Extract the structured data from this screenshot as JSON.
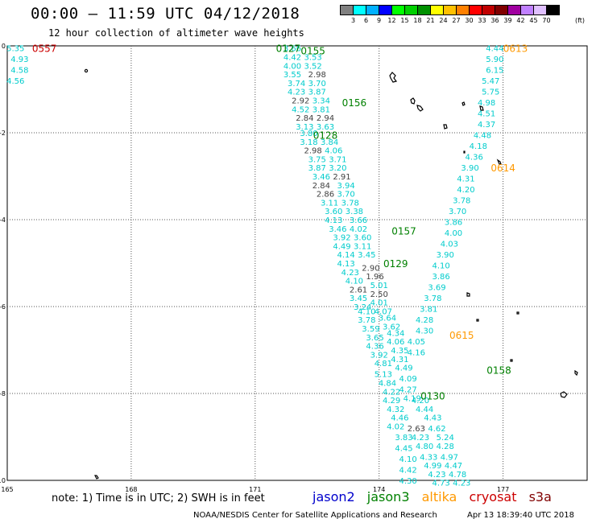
{
  "header": {
    "title": "00:00 – 11:59 UTC 04/12/2018",
    "subtitle": "12 hour collection of altimeter wave heights"
  },
  "colorbar": {
    "colors": [
      "#808080",
      "#00ffff",
      "#00b0ff",
      "#0000ff",
      "#00ff00",
      "#00d000",
      "#009000",
      "#ffff00",
      "#ffc000",
      "#ff8000",
      "#ff0000",
      "#c00000",
      "#800000",
      "#a000a0",
      "#c080ff",
      "#e0c0ff",
      "#000000"
    ],
    "ticks": [
      "3",
      "6",
      "9",
      "12",
      "15",
      "18",
      "21",
      "24",
      "27",
      "30",
      "33",
      "36",
      "39",
      "42",
      "45",
      "70"
    ],
    "unit": "(ft)"
  },
  "axes": {
    "y_ticks": [
      "0",
      "-2",
      "-4",
      "-6",
      "-8",
      "-10"
    ],
    "x_ticks": [
      "165",
      "168",
      "171",
      "174",
      "177"
    ]
  },
  "colors": {
    "jason2": "#0000cc",
    "jason3": "#008000",
    "altika": "#ff9900",
    "cryosat": "#cc0000",
    "s3a": "#800000",
    "cyan": "#00cccc",
    "gray": "#404040"
  },
  "time_labels": [
    {
      "text": "0557",
      "lon": 165.9,
      "lat": -0.05,
      "color": "#cc0000"
    },
    {
      "text": "0127",
      "lon": 171.8,
      "lat": -0.05,
      "color": "#008000"
    },
    {
      "text": "0155",
      "lon": 172.4,
      "lat": -0.1,
      "color": "#008000"
    },
    {
      "text": "0613",
      "lon": 177.3,
      "lat": -0.05,
      "color": "#ff9900"
    },
    {
      "text": "0156",
      "lon": 173.4,
      "lat": -1.3,
      "color": "#008000"
    },
    {
      "text": "0128",
      "lon": 172.7,
      "lat": -2.05,
      "color": "#008000"
    },
    {
      "text": "0614",
      "lon": 177.0,
      "lat": -2.8,
      "color": "#ff9900"
    },
    {
      "text": "0157",
      "lon": 174.6,
      "lat": -4.25,
      "color": "#008000"
    },
    {
      "text": "0129",
      "lon": 174.4,
      "lat": -5.0,
      "color": "#008000"
    },
    {
      "text": "0615",
      "lon": 176.0,
      "lat": -6.65,
      "color": "#ff9900"
    },
    {
      "text": "0158",
      "lon": 176.9,
      "lat": -7.45,
      "color": "#008000"
    },
    {
      "text": "0130",
      "lon": 175.3,
      "lat": -8.05,
      "color": "#008000"
    }
  ],
  "wave_values": [
    {
      "text": "5.35",
      "lon": 165.2,
      "lat": -0.05,
      "color": "#00cccc"
    },
    {
      "text": "4.93",
      "lon": 165.3,
      "lat": -0.3,
      "color": "#00cccc"
    },
    {
      "text": "4.58",
      "lon": 165.3,
      "lat": -0.55,
      "color": "#00cccc"
    },
    {
      "text": "4.56",
      "lon": 165.2,
      "lat": -0.8,
      "color": "#00cccc"
    },
    {
      "text": "3.66",
      "lon": 171.9,
      "lat": -0.05,
      "color": "#00cccc"
    },
    {
      "text": "4.42",
      "lon": 171.9,
      "lat": -0.25,
      "color": "#00cccc"
    },
    {
      "text": "3.53",
      "lon": 172.4,
      "lat": -0.25,
      "color": "#00cccc"
    },
    {
      "text": "4.00",
      "lon": 171.9,
      "lat": -0.45,
      "color": "#00cccc"
    },
    {
      "text": "3.52",
      "lon": 172.4,
      "lat": -0.45,
      "color": "#00cccc"
    },
    {
      "text": "3.55",
      "lon": 171.9,
      "lat": -0.65,
      "color": "#00cccc"
    },
    {
      "text": "2.98",
      "lon": 172.5,
      "lat": -0.65,
      "color": "#404040"
    },
    {
      "text": "3.74",
      "lon": 172.0,
      "lat": -0.85,
      "color": "#00cccc"
    },
    {
      "text": "3.70",
      "lon": 172.5,
      "lat": -0.85,
      "color": "#00cccc"
    },
    {
      "text": "4.23",
      "lon": 172.0,
      "lat": -1.05,
      "color": "#00cccc"
    },
    {
      "text": "3.87",
      "lon": 172.5,
      "lat": -1.05,
      "color": "#00cccc"
    },
    {
      "text": "2.92",
      "lon": 172.1,
      "lat": -1.25,
      "color": "#404040"
    },
    {
      "text": "3.34",
      "lon": 172.6,
      "lat": -1.25,
      "color": "#00cccc"
    },
    {
      "text": "4.52",
      "lon": 172.1,
      "lat": -1.45,
      "color": "#00cccc"
    },
    {
      "text": "3.81",
      "lon": 172.6,
      "lat": -1.45,
      "color": "#00cccc"
    },
    {
      "text": "2.84",
      "lon": 172.2,
      "lat": -1.65,
      "color": "#404040"
    },
    {
      "text": "2.94",
      "lon": 172.7,
      "lat": -1.65,
      "color": "#404040"
    },
    {
      "text": "3.13",
      "lon": 172.2,
      "lat": -1.85,
      "color": "#00cccc"
    },
    {
      "text": "3.63",
      "lon": 172.7,
      "lat": -1.85,
      "color": "#00cccc"
    },
    {
      "text": "3.80",
      "lon": 172.3,
      "lat": -2.0,
      "color": "#00cccc"
    },
    {
      "text": "3.18",
      "lon": 172.3,
      "lat": -2.2,
      "color": "#00cccc"
    },
    {
      "text": "3.84",
      "lon": 172.8,
      "lat": -2.2,
      "color": "#00cccc"
    },
    {
      "text": "2.98",
      "lon": 172.4,
      "lat": -2.4,
      "color": "#404040"
    },
    {
      "text": "4.06",
      "lon": 172.9,
      "lat": -2.4,
      "color": "#00cccc"
    },
    {
      "text": "3.75",
      "lon": 172.5,
      "lat": -2.6,
      "color": "#00cccc"
    },
    {
      "text": "3.71",
      "lon": 173.0,
      "lat": -2.6,
      "color": "#00cccc"
    },
    {
      "text": "3.87",
      "lon": 172.5,
      "lat": -2.8,
      "color": "#00cccc"
    },
    {
      "text": "3.20",
      "lon": 173.0,
      "lat": -2.8,
      "color": "#00cccc"
    },
    {
      "text": "3.46",
      "lon": 172.6,
      "lat": -3.0,
      "color": "#00cccc"
    },
    {
      "text": "2.91",
      "lon": 173.1,
      "lat": -3.0,
      "color": "#404040"
    },
    {
      "text": "2.84",
      "lon": 172.6,
      "lat": -3.2,
      "color": "#404040"
    },
    {
      "text": "3.94",
      "lon": 173.2,
      "lat": -3.2,
      "color": "#00cccc"
    },
    {
      "text": "2.86",
      "lon": 172.7,
      "lat": -3.4,
      "color": "#404040"
    },
    {
      "text": "3.70",
      "lon": 173.2,
      "lat": -3.4,
      "color": "#00cccc"
    },
    {
      "text": "3.11",
      "lon": 172.8,
      "lat": -3.6,
      "color": "#00cccc"
    },
    {
      "text": "3.78",
      "lon": 173.3,
      "lat": -3.6,
      "color": "#00cccc"
    },
    {
      "text": "3.60",
      "lon": 172.9,
      "lat": -3.8,
      "color": "#00cccc"
    },
    {
      "text": "3.38",
      "lon": 173.4,
      "lat": -3.8,
      "color": "#00cccc"
    },
    {
      "text": "4.13",
      "lon": 172.9,
      "lat": -4.0,
      "color": "#00cccc"
    },
    {
      "text": "3.66",
      "lon": 173.5,
      "lat": -4.0,
      "color": "#00cccc"
    },
    {
      "text": "3.46",
      "lon": 173.0,
      "lat": -4.2,
      "color": "#00cccc"
    },
    {
      "text": "4.02",
      "lon": 173.5,
      "lat": -4.2,
      "color": "#00cccc"
    },
    {
      "text": "3.92",
      "lon": 173.1,
      "lat": -4.4,
      "color": "#00cccc"
    },
    {
      "text": "3.60",
      "lon": 173.6,
      "lat": -4.4,
      "color": "#00cccc"
    },
    {
      "text": "4.49",
      "lon": 173.1,
      "lat": -4.6,
      "color": "#00cccc"
    },
    {
      "text": "3.11",
      "lon": 173.6,
      "lat": -4.6,
      "color": "#00cccc"
    },
    {
      "text": "4.14",
      "lon": 173.2,
      "lat": -4.8,
      "color": "#00cccc"
    },
    {
      "text": "3.45",
      "lon": 173.7,
      "lat": -4.8,
      "color": "#00cccc"
    },
    {
      "text": "4.13",
      "lon": 173.2,
      "lat": -5.0,
      "color": "#00cccc"
    },
    {
      "text": "4.23",
      "lon": 173.3,
      "lat": -5.2,
      "color": "#00cccc"
    },
    {
      "text": "2.90",
      "lon": 173.8,
      "lat": -5.1,
      "color": "#404040"
    },
    {
      "text": "1.96",
      "lon": 173.9,
      "lat": -5.3,
      "color": "#404040"
    },
    {
      "text": "4.10",
      "lon": 173.4,
      "lat": -5.4,
      "color": "#00cccc"
    },
    {
      "text": "5.01",
      "lon": 174.0,
      "lat": -5.5,
      "color": "#00cccc"
    },
    {
      "text": "2.61",
      "lon": 173.5,
      "lat": -5.6,
      "color": "#404040"
    },
    {
      "text": "2.50",
      "lon": 174.0,
      "lat": -5.7,
      "color": "#404040"
    },
    {
      "text": "3.45",
      "lon": 173.5,
      "lat": -5.8,
      "color": "#00cccc"
    },
    {
      "text": "4.01",
      "lon": 174.0,
      "lat": -5.9,
      "color": "#00cccc"
    },
    {
      "text": "3.24",
      "lon": 173.6,
      "lat": -6.0,
      "color": "#00cccc"
    },
    {
      "text": "4.10",
      "lon": 173.7,
      "lat": -6.1,
      "color": "#00cccc"
    },
    {
      "text": "4.07",
      "lon": 174.1,
      "lat": -6.1,
      "color": "#00cccc"
    },
    {
      "text": "3.78",
      "lon": 173.7,
      "lat": -6.3,
      "color": "#00cccc"
    },
    {
      "text": "3.64",
      "lon": 174.2,
      "lat": -6.25,
      "color": "#00cccc"
    },
    {
      "text": "3.59",
      "lon": 173.8,
      "lat": -6.5,
      "color": "#00cccc"
    },
    {
      "text": "3.62",
      "lon": 174.3,
      "lat": -6.45,
      "color": "#00cccc"
    },
    {
      "text": "3.65",
      "lon": 173.9,
      "lat": -6.7,
      "color": "#00cccc"
    },
    {
      "text": "4.34",
      "lon": 174.4,
      "lat": -6.6,
      "color": "#00cccc"
    },
    {
      "text": "4.36",
      "lon": 173.9,
      "lat": -6.9,
      "color": "#00cccc"
    },
    {
      "text": "4.06",
      "lon": 174.4,
      "lat": -6.8,
      "color": "#00cccc"
    },
    {
      "text": "3.92",
      "lon": 174.0,
      "lat": -7.1,
      "color": "#00cccc"
    },
    {
      "text": "4.35",
      "lon": 174.5,
      "lat": -7.0,
      "color": "#00cccc"
    },
    {
      "text": "4.81",
      "lon": 174.1,
      "lat": -7.3,
      "color": "#00cccc"
    },
    {
      "text": "4.31",
      "lon": 174.5,
      "lat": -7.2,
      "color": "#00cccc"
    },
    {
      "text": "5.13",
      "lon": 174.1,
      "lat": -7.55,
      "color": "#00cccc"
    },
    {
      "text": "4.49",
      "lon": 174.6,
      "lat": -7.4,
      "color": "#00cccc"
    },
    {
      "text": "4.84",
      "lon": 174.2,
      "lat": -7.75,
      "color": "#00cccc"
    },
    {
      "text": "4.09",
      "lon": 174.7,
      "lat": -7.65,
      "color": "#00cccc"
    },
    {
      "text": "4.22",
      "lon": 174.3,
      "lat": -7.95,
      "color": "#00cccc"
    },
    {
      "text": "4.27",
      "lon": 174.7,
      "lat": -7.9,
      "color": "#00cccc"
    },
    {
      "text": "4.29",
      "lon": 174.3,
      "lat": -8.15,
      "color": "#00cccc"
    },
    {
      "text": "4.19",
      "lon": 174.8,
      "lat": -8.1,
      "color": "#00cccc"
    },
    {
      "text": "4.32",
      "lon": 174.4,
      "lat": -8.35,
      "color": "#00cccc"
    },
    {
      "text": "4.46",
      "lon": 174.5,
      "lat": -8.55,
      "color": "#00cccc"
    },
    {
      "text": "4.02",
      "lon": 174.4,
      "lat": -8.75,
      "color": "#00cccc"
    },
    {
      "text": "2.63",
      "lon": 174.9,
      "lat": -8.8,
      "color": "#404040"
    },
    {
      "text": "3.83",
      "lon": 174.6,
      "lat": -9.0,
      "color": "#00cccc"
    },
    {
      "text": "4.23",
      "lon": 175.0,
      "lat": -9.0,
      "color": "#00cccc"
    },
    {
      "text": "4.45",
      "lon": 174.6,
      "lat": -9.25,
      "color": "#00cccc"
    },
    {
      "text": "4.80",
      "lon": 175.1,
      "lat": -9.2,
      "color": "#00cccc"
    },
    {
      "text": "4.10",
      "lon": 174.7,
      "lat": -9.5,
      "color": "#00cccc"
    },
    {
      "text": "4.33",
      "lon": 175.2,
      "lat": -9.45,
      "color": "#00cccc"
    },
    {
      "text": "4.42",
      "lon": 174.7,
      "lat": -9.75,
      "color": "#00cccc"
    },
    {
      "text": "4.30",
      "lon": 174.7,
      "lat": -10.0,
      "color": "#00cccc"
    },
    {
      "text": "4.44",
      "lon": 176.8,
      "lat": -0.05,
      "color": "#00cccc"
    },
    {
      "text": "5.90",
      "lon": 176.8,
      "lat": -0.3,
      "color": "#00cccc"
    },
    {
      "text": "6.15",
      "lon": 176.8,
      "lat": -0.55,
      "color": "#00cccc"
    },
    {
      "text": "5.47",
      "lon": 176.7,
      "lat": -0.8,
      "color": "#00cccc"
    },
    {
      "text": "5.75",
      "lon": 176.7,
      "lat": -1.05,
      "color": "#00cccc"
    },
    {
      "text": "4.98",
      "lon": 176.6,
      "lat": -1.3,
      "color": "#00cccc"
    },
    {
      "text": "4.51",
      "lon": 176.6,
      "lat": -1.55,
      "color": "#00cccc"
    },
    {
      "text": "4.37",
      "lon": 176.6,
      "lat": -1.8,
      "color": "#00cccc"
    },
    {
      "text": "4.48",
      "lon": 176.5,
      "lat": -2.05,
      "color": "#00cccc"
    },
    {
      "text": "4.18",
      "lon": 176.4,
      "lat": -2.3,
      "color": "#00cccc"
    },
    {
      "text": "4.36",
      "lon": 176.3,
      "lat": -2.55,
      "color": "#00cccc"
    },
    {
      "text": "3.90",
      "lon": 176.2,
      "lat": -2.8,
      "color": "#00cccc"
    },
    {
      "text": "4.31",
      "lon": 176.1,
      "lat": -3.05,
      "color": "#00cccc"
    },
    {
      "text": "4.20",
      "lon": 176.1,
      "lat": -3.3,
      "color": "#00cccc"
    },
    {
      "text": "3.78",
      "lon": 176.0,
      "lat": -3.55,
      "color": "#00cccc"
    },
    {
      "text": "3.70",
      "lon": 175.9,
      "lat": -3.8,
      "color": "#00cccc"
    },
    {
      "text": "3.86",
      "lon": 175.8,
      "lat": -4.05,
      "color": "#00cccc"
    },
    {
      "text": "4.00",
      "lon": 175.8,
      "lat": -4.3,
      "color": "#00cccc"
    },
    {
      "text": "4.03",
      "lon": 175.7,
      "lat": -4.55,
      "color": "#00cccc"
    },
    {
      "text": "3.90",
      "lon": 175.6,
      "lat": -4.8,
      "color": "#00cccc"
    },
    {
      "text": "4.10",
      "lon": 175.5,
      "lat": -5.05,
      "color": "#00cccc"
    },
    {
      "text": "3.86",
      "lon": 175.5,
      "lat": -5.3,
      "color": "#00cccc"
    },
    {
      "text": "3.69",
      "lon": 175.4,
      "lat": -5.55,
      "color": "#00cccc"
    },
    {
      "text": "3.78",
      "lon": 175.3,
      "lat": -5.8,
      "color": "#00cccc"
    },
    {
      "text": "3.81",
      "lon": 175.2,
      "lat": -6.05,
      "color": "#00cccc"
    },
    {
      "text": "4.28",
      "lon": 175.1,
      "lat": -6.3,
      "color": "#00cccc"
    },
    {
      "text": "4.30",
      "lon": 175.1,
      "lat": -6.55,
      "color": "#00cccc"
    },
    {
      "text": "4.05",
      "lon": 174.9,
      "lat": -6.8,
      "color": "#00cccc"
    },
    {
      "text": "4.16",
      "lon": 174.9,
      "lat": -7.05,
      "color": "#00cccc"
    },
    {
      "text": "4.20",
      "lon": 175.0,
      "lat": -8.15,
      "color": "#00cccc"
    },
    {
      "text": "4.44",
      "lon": 175.1,
      "lat": -8.35,
      "color": "#00cccc"
    },
    {
      "text": "4.43",
      "lon": 175.3,
      "lat": -8.55,
      "color": "#00cccc"
    },
    {
      "text": "4.62",
      "lon": 175.4,
      "lat": -8.8,
      "color": "#00cccc"
    },
    {
      "text": "5.24",
      "lon": 175.6,
      "lat": -9.0,
      "color": "#00cccc"
    },
    {
      "text": "4.28",
      "lon": 175.6,
      "lat": -9.2,
      "color": "#00cccc"
    },
    {
      "text": "4.97",
      "lon": 175.7,
      "lat": -9.45,
      "color": "#00cccc"
    },
    {
      "text": "4.99",
      "lon": 175.3,
      "lat": -9.65,
      "color": "#00cccc"
    },
    {
      "text": "4.47",
      "lon": 175.8,
      "lat": -9.65,
      "color": "#00cccc"
    },
    {
      "text": "4.23",
      "lon": 175.4,
      "lat": -9.85,
      "color": "#00cccc"
    },
    {
      "text": "4.78",
      "lon": 175.9,
      "lat": -9.85,
      "color": "#00cccc"
    },
    {
      "text": "4.73",
      "lon": 175.5,
      "lat": -10.05,
      "color": "#00cccc"
    },
    {
      "text": "4.23",
      "lon": 176.0,
      "lat": -10.05,
      "color": "#00cccc"
    }
  ],
  "footer": {
    "note": "note:  1) Time is in UTC;  2) SWH is in feet",
    "legend": [
      "jason2",
      "jason3",
      "altika",
      "cryosat",
      "s3a"
    ],
    "credit": "NOAA/NESDIS Center for Satellite Applications and Research",
    "stamp": "Apr 13 18:39:40 UTC 2018"
  }
}
